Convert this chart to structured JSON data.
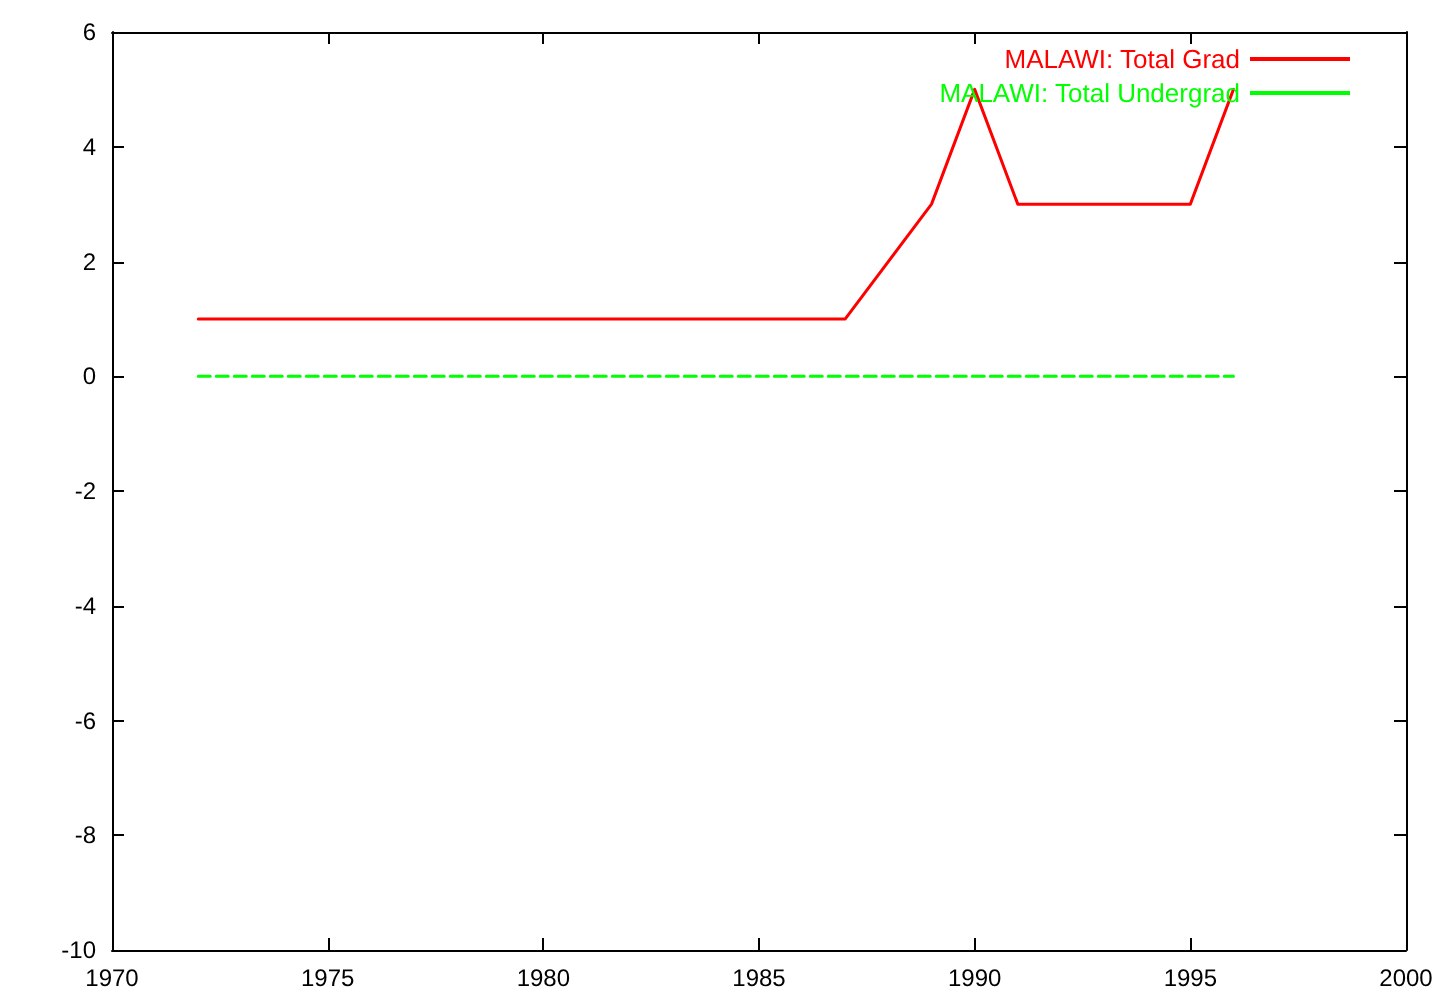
{
  "chart_data": {
    "type": "line",
    "series": [
      {
        "name": "MALAWI: Total Grad",
        "color": "#ff0000",
        "line_style": "solid",
        "x": [
          1972,
          1987,
          1989,
          1990,
          1991,
          1995,
          1996
        ],
        "values": [
          1,
          1,
          3,
          5,
          3,
          3,
          5
        ]
      },
      {
        "name": "MALAWI: Total Undergrad",
        "color": "#00ff00",
        "line_style": "dashed",
        "x": [
          1972,
          1996
        ],
        "values": [
          0,
          0
        ]
      }
    ],
    "xlim": [
      1970,
      2000
    ],
    "xticks": [
      1970,
      1975,
      1980,
      1985,
      1990,
      1995,
      2000
    ],
    "ylim": [
      -10,
      6
    ],
    "yticks": [
      -10,
      -8,
      -6,
      -4,
      -2,
      0,
      2,
      4,
      6
    ],
    "grid": false,
    "legend": "top right",
    "marker": "none"
  }
}
